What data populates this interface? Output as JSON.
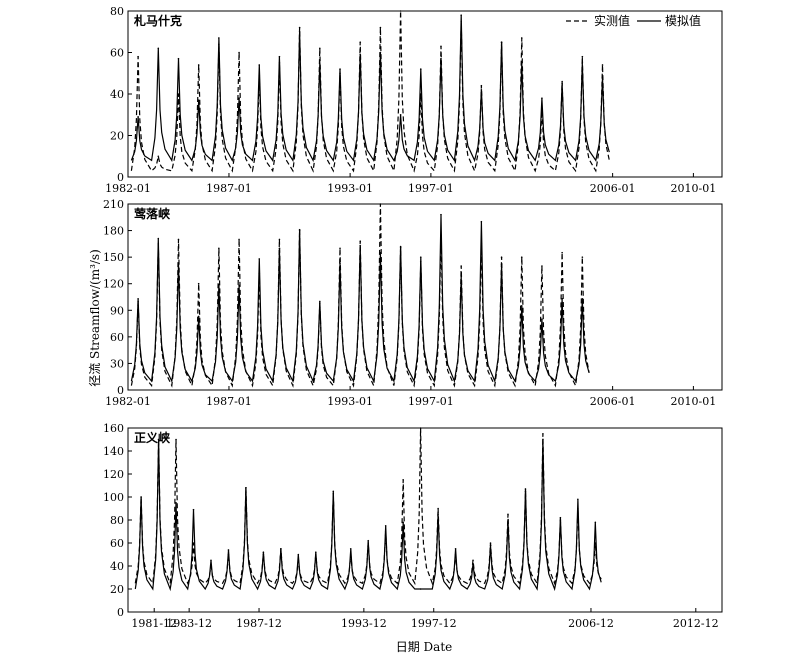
{
  "ylabel": "径流 Streamflow/(m³/s)",
  "xlabel": "日期 Date",
  "legend": {
    "observed": "实测值",
    "simulated": "模拟值"
  },
  "chart_data": [
    {
      "type": "line",
      "title": "札马什克",
      "ylim": [
        0,
        80
      ],
      "yticks": [
        0,
        20,
        40,
        60,
        80
      ],
      "xticks": [
        "1982-01",
        "1987-01",
        "1993-01",
        "1997-01",
        "2006-01",
        "2010-01"
      ],
      "x_start": "1982-01",
      "x_end": "2011-06",
      "peaks": [
        {
          "date": "1982-07",
          "observed": 58,
          "simulated": 29
        },
        {
          "date": "1983-07",
          "observed": 10,
          "simulated": 62
        },
        {
          "date": "1984-07",
          "observed": 40,
          "simulated": 57
        },
        {
          "date": "1985-07",
          "observed": 54,
          "simulated": 37
        },
        {
          "date": "1986-07",
          "observed": 64,
          "simulated": 67
        },
        {
          "date": "1987-07",
          "observed": 60,
          "simulated": 38
        },
        {
          "date": "1988-07",
          "observed": 49,
          "simulated": 54
        },
        {
          "date": "1989-07",
          "observed": 55,
          "simulated": 58
        },
        {
          "date": "1990-07",
          "observed": 72,
          "simulated": 70
        },
        {
          "date": "1991-07",
          "observed": 62,
          "simulated": 55
        },
        {
          "date": "1992-07",
          "observed": 50,
          "simulated": 52
        },
        {
          "date": "1993-07",
          "observed": 65,
          "simulated": 59
        },
        {
          "date": "1994-07",
          "observed": 72,
          "simulated": 60
        },
        {
          "date": "1995-07",
          "observed": 80,
          "simulated": 30
        },
        {
          "date": "1996-07",
          "observed": 40,
          "simulated": 52
        },
        {
          "date": "1997-07",
          "observed": 63,
          "simulated": 57
        },
        {
          "date": "1998-07",
          "observed": 75,
          "simulated": 78
        },
        {
          "date": "1999-07",
          "observed": 44,
          "simulated": 42
        },
        {
          "date": "2000-07",
          "observed": 65,
          "simulated": 65
        },
        {
          "date": "2001-07",
          "observed": 67,
          "simulated": 55
        },
        {
          "date": "2002-07",
          "observed": 32,
          "simulated": 38
        },
        {
          "date": "2003-07",
          "observed": 46,
          "simulated": 45
        },
        {
          "date": "2004-07",
          "observed": 58,
          "simulated": 55
        },
        {
          "date": "2005-07",
          "observed": 54,
          "simulated": 48
        }
      ],
      "observed_baseline": 3,
      "simulated_baseline": 8
    },
    {
      "type": "line",
      "title": "莺落峡",
      "ylim": [
        0,
        210
      ],
      "yticks": [
        0,
        30,
        60,
        90,
        120,
        150,
        180,
        210
      ],
      "xticks": [
        "1982-01",
        "1987-01",
        "1993-01",
        "1997-01",
        "2006-01",
        "2010-01"
      ],
      "x_start": "1982-01",
      "x_end": "2011-06",
      "peaks": [
        {
          "date": "1982-07",
          "observed": 100,
          "simulated": 103
        },
        {
          "date": "1983-07",
          "observed": 165,
          "simulated": 171
        },
        {
          "date": "1984-07",
          "observed": 170,
          "simulated": 142
        },
        {
          "date": "1985-07",
          "observed": 120,
          "simulated": 83
        },
        {
          "date": "1986-07",
          "observed": 160,
          "simulated": 119
        },
        {
          "date": "1987-07",
          "observed": 170,
          "simulated": 118
        },
        {
          "date": "1988-07",
          "observed": 132,
          "simulated": 148
        },
        {
          "date": "1989-07",
          "observed": 170,
          "simulated": 160
        },
        {
          "date": "1990-07",
          "observed": 181,
          "simulated": 180
        },
        {
          "date": "1991-07",
          "observed": 98,
          "simulated": 100
        },
        {
          "date": "1992-07",
          "observed": 160,
          "simulated": 143
        },
        {
          "date": "1993-07",
          "observed": 168,
          "simulated": 163
        },
        {
          "date": "1994-07",
          "observed": 210,
          "simulated": 155
        },
        {
          "date": "1995-07",
          "observed": 161,
          "simulated": 162
        },
        {
          "date": "1996-07",
          "observed": 145,
          "simulated": 150
        },
        {
          "date": "1997-07",
          "observed": 175,
          "simulated": 198
        },
        {
          "date": "1998-07",
          "observed": 140,
          "simulated": 128
        },
        {
          "date": "1999-07",
          "observed": 165,
          "simulated": 190
        },
        {
          "date": "2000-07",
          "observed": 150,
          "simulated": 142
        },
        {
          "date": "2001-07",
          "observed": 150,
          "simulated": 95
        },
        {
          "date": "2002-07",
          "observed": 140,
          "simulated": 80
        },
        {
          "date": "2003-07",
          "observed": 155,
          "simulated": 103
        },
        {
          "date": "2004-07",
          "observed": 150,
          "simulated": 103
        }
      ],
      "observed_baseline": 5,
      "simulated_baseline": 10
    },
    {
      "type": "line",
      "title": "正义峡",
      "ylim": [
        0,
        160
      ],
      "yticks": [
        0,
        20,
        40,
        60,
        80,
        100,
        120,
        140,
        160
      ],
      "xticks": [
        "1981-12",
        "1983-12",
        "1987-12",
        "1993-12",
        "1997-12",
        "2006-12",
        "2012-12"
      ],
      "x_start": "1980-06",
      "x_end": "2014-06",
      "peaks": [
        {
          "date": "1981-03",
          "observed": 100,
          "simulated": 100
        },
        {
          "date": "1982-03",
          "observed": 150,
          "simulated": 150
        },
        {
          "date": "1983-03",
          "observed": 150,
          "simulated": 95
        },
        {
          "date": "1984-03",
          "observed": 60,
          "simulated": 89
        },
        {
          "date": "1985-03",
          "observed": 40,
          "simulated": 45
        },
        {
          "date": "1986-03",
          "observed": 50,
          "simulated": 54
        },
        {
          "date": "1987-03",
          "observed": 108,
          "simulated": 108
        },
        {
          "date": "1988-03",
          "observed": 50,
          "simulated": 52
        },
        {
          "date": "1989-03",
          "observed": 55,
          "simulated": 55
        },
        {
          "date": "1990-03",
          "observed": 45,
          "simulated": 50
        },
        {
          "date": "1991-03",
          "observed": 50,
          "simulated": 52
        },
        {
          "date": "1992-03",
          "observed": 103,
          "simulated": 105
        },
        {
          "date": "1993-03",
          "observed": 50,
          "simulated": 55
        },
        {
          "date": "1994-03",
          "observed": 60,
          "simulated": 62
        },
        {
          "date": "1995-03",
          "observed": 70,
          "simulated": 75
        },
        {
          "date": "1996-03",
          "observed": 115,
          "simulated": 78
        },
        {
          "date": "1997-03",
          "observed": 160,
          "simulated": 20
        },
        {
          "date": "1998-03",
          "observed": 90,
          "simulated": 85
        },
        {
          "date": "1999-03",
          "observed": 50,
          "simulated": 55
        },
        {
          "date": "2000-03",
          "observed": 45,
          "simulated": 42
        },
        {
          "date": "2001-03",
          "observed": 60,
          "simulated": 58
        },
        {
          "date": "2002-03",
          "observed": 85,
          "simulated": 80
        },
        {
          "date": "2003-03",
          "observed": 105,
          "simulated": 107
        },
        {
          "date": "2004-03",
          "observed": 155,
          "simulated": 150
        },
        {
          "date": "2005-03",
          "observed": 80,
          "simulated": 82
        },
        {
          "date": "2006-03",
          "observed": 90,
          "simulated": 98
        },
        {
          "date": "2007-03",
          "observed": 60,
          "simulated": 78
        }
      ],
      "observed_baseline": 25,
      "simulated_baseline": 20
    }
  ]
}
